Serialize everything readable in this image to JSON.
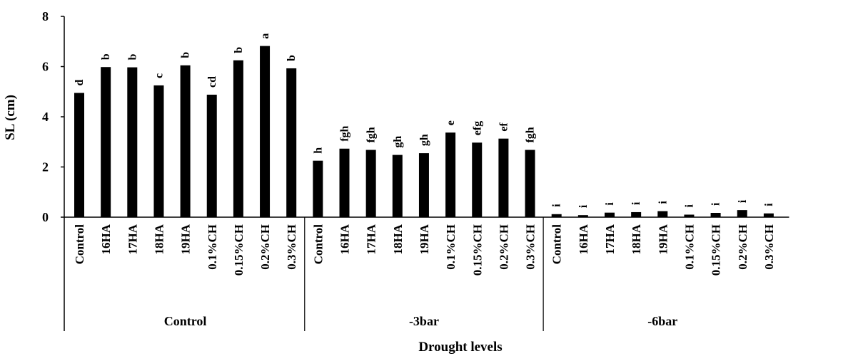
{
  "chart_data": {
    "type": "bar",
    "ylabel": "SL (cm)",
    "xlabel": "Drought levels",
    "ylim": [
      0,
      8
    ],
    "yticks": [
      "0",
      "2",
      "4",
      "6",
      "8"
    ],
    "grid": false,
    "legend": "none",
    "bar_color": "#000000",
    "groups": [
      {
        "name": "Control",
        "categories": [
          "Control",
          "16HA",
          "17HA",
          "18HA",
          "19HA",
          "0.1%CH",
          "0.15%CH",
          "0.2%CH",
          "0.3%CH"
        ],
        "values": [
          4.95,
          5.98,
          5.97,
          5.25,
          6.05,
          4.88,
          6.25,
          6.82,
          5.93
        ],
        "letters": [
          "d",
          "b",
          "b",
          "c",
          "b",
          "cd",
          "b",
          "a",
          "b"
        ]
      },
      {
        "name": "-3bar",
        "categories": [
          "Control",
          "16HA",
          "17HA",
          "18HA",
          "19HA",
          "0.1%CH",
          "0.15%CH",
          "0.2%CH",
          "0.3%CH"
        ],
        "values": [
          2.25,
          2.73,
          2.68,
          2.48,
          2.55,
          3.37,
          2.97,
          3.13,
          2.68
        ],
        "letters": [
          "h",
          "fgh",
          "fgh",
          "gh",
          "gh",
          "e",
          "efg",
          "ef",
          "fgh"
        ]
      },
      {
        "name": "-6bar",
        "categories": [
          "Control",
          "16HA",
          "17HA",
          "18HA",
          "19HA",
          "0.1%CH",
          "0.15%CH",
          "0.2%CH",
          "0.3%CH"
        ],
        "values": [
          0.12,
          0.08,
          0.18,
          0.2,
          0.24,
          0.1,
          0.17,
          0.28,
          0.15
        ],
        "letters": [
          "i",
          "i",
          "i",
          "i",
          "i",
          "i",
          "i",
          "i",
          "i"
        ]
      }
    ]
  }
}
